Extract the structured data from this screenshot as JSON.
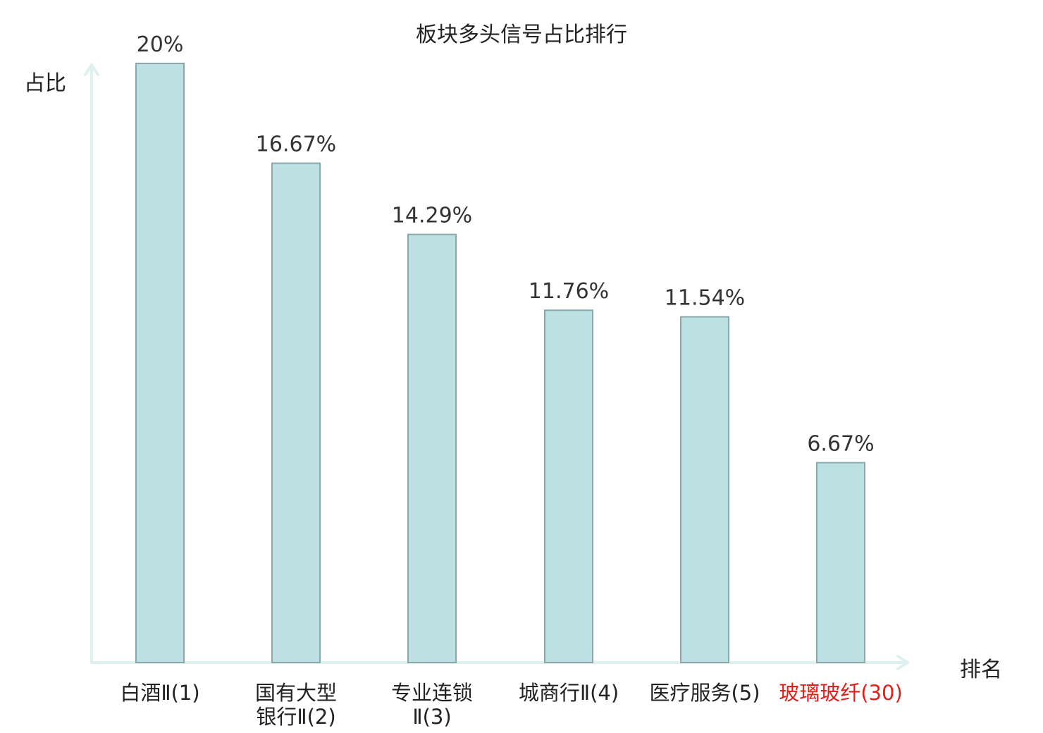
{
  "chart_data": {
    "type": "bar",
    "title": "板块多头信号占比排行",
    "ylabel": "占比",
    "xlabel": "排名",
    "ylim": [
      0,
      20
    ],
    "grid": false,
    "categories": [
      {
        "name": "白酒Ⅱ",
        "rank": "(1)",
        "lines": [
          "白酒Ⅱ(1)"
        ],
        "highlight": false
      },
      {
        "name": "国有大型银行Ⅱ",
        "rank": "(2)",
        "lines": [
          "国有大型",
          "银行Ⅱ(2)"
        ],
        "highlight": false
      },
      {
        "name": "专业连锁Ⅱ",
        "rank": "(3)",
        "lines": [
          "专业连锁",
          "Ⅱ(3)"
        ],
        "highlight": false
      },
      {
        "name": "城商行Ⅱ",
        "rank": "(4)",
        "lines": [
          "城商行Ⅱ(4)"
        ],
        "highlight": false
      },
      {
        "name": "医疗服务",
        "rank": "(5)",
        "lines": [
          "医疗服务(5)"
        ],
        "highlight": false
      },
      {
        "name": "玻璃玻纤",
        "rank": "(30)",
        "lines": [
          "玻璃玻纤(30)"
        ],
        "highlight": true
      }
    ],
    "values": [
      20,
      16.67,
      14.29,
      11.76,
      11.54,
      6.67
    ],
    "value_labels": [
      "20%",
      "16.67%",
      "14.29%",
      "11.76%",
      "11.54%",
      "6.67%"
    ],
    "colors": {
      "bar_fill": "#bde0e2",
      "bar_stroke": "#8aa7aa",
      "axis": "#dff1ee",
      "highlight_text": "#e0201b"
    }
  }
}
